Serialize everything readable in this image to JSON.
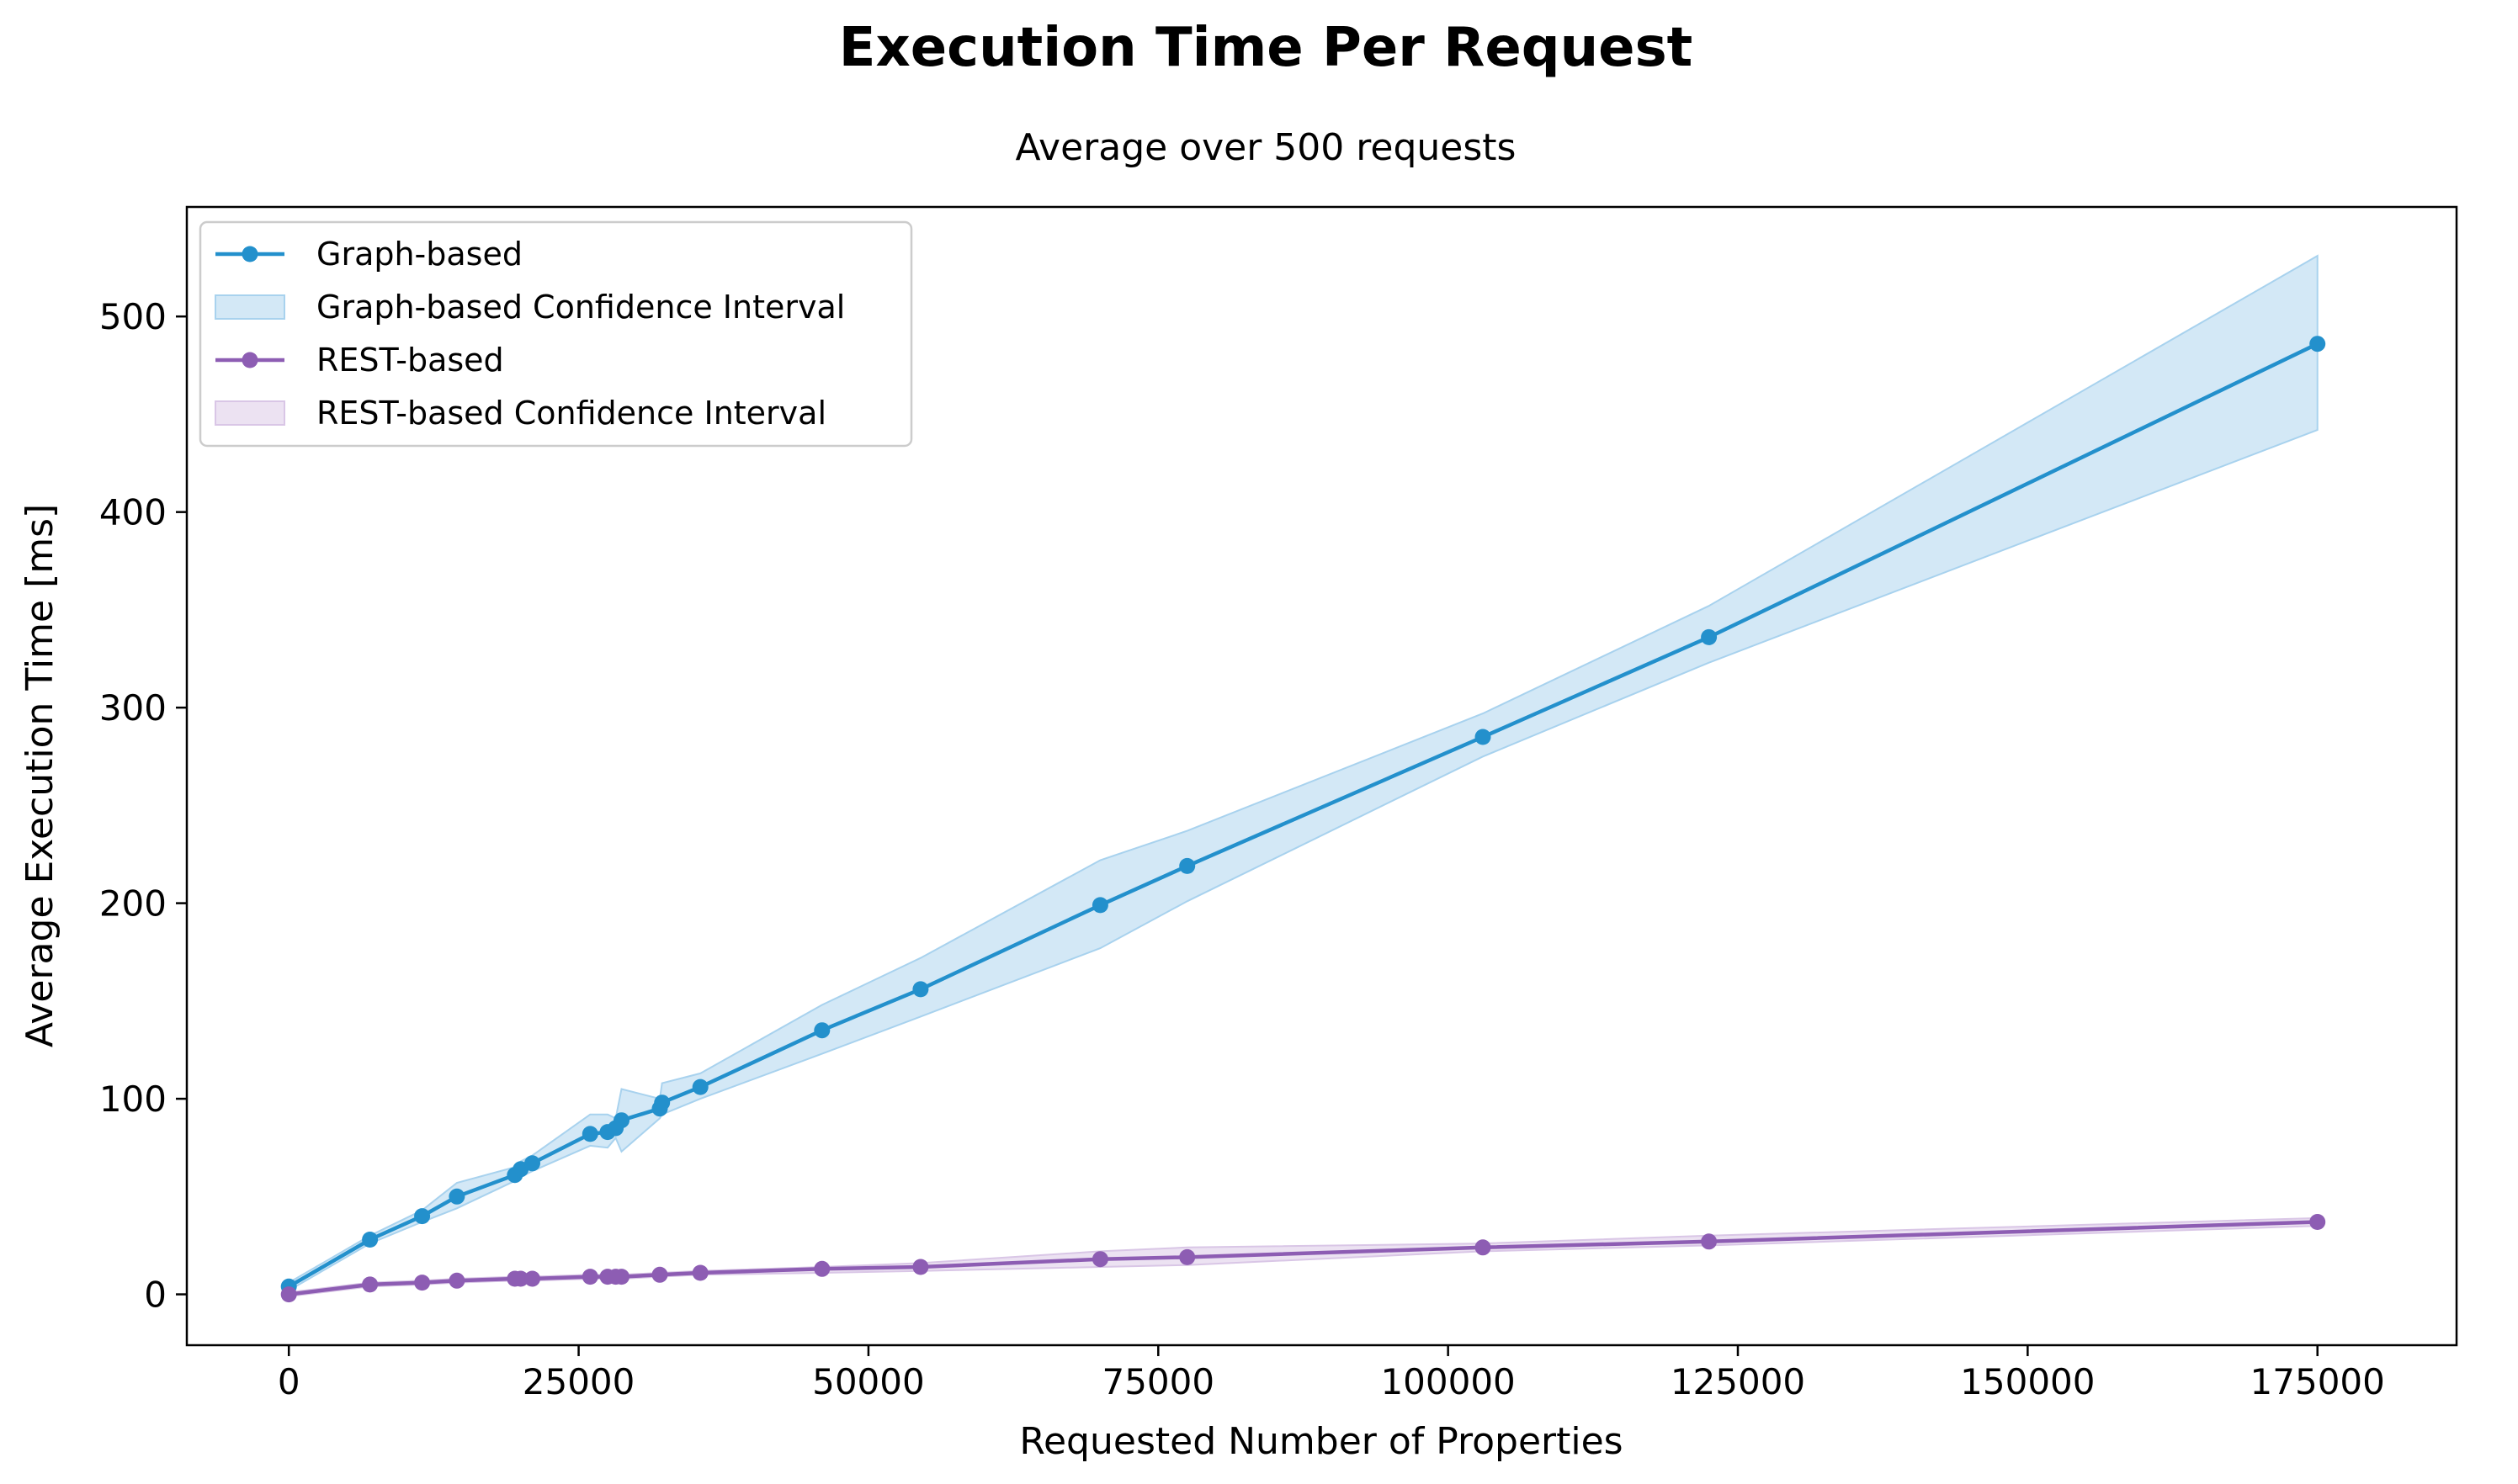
{
  "chart_data": {
    "type": "line",
    "title": "Execution Time Per Request",
    "subtitle": "Average over 500 requests",
    "xlabel": "Requested Number of Properties",
    "ylabel": "Average Execution Time [ms]",
    "xlim": [
      -8800,
      187000
    ],
    "ylim": [
      -26,
      556
    ],
    "xticks": [
      0,
      25000,
      50000,
      75000,
      100000,
      125000,
      150000,
      175000
    ],
    "yticks": [
      0,
      100,
      200,
      300,
      400,
      500
    ],
    "grid": false,
    "legend_position": "top-left",
    "legend": [
      {
        "label": "Graph-based",
        "kind": "line",
        "color": "#2390cc"
      },
      {
        "label": "Graph-based Confidence Interval",
        "kind": "band",
        "color": "#a8d2ee"
      },
      {
        "label": "REST-based",
        "kind": "line",
        "color": "#8d5db3"
      },
      {
        "label": "REST-based Confidence Interval",
        "kind": "band",
        "color": "#d9c6e6"
      }
    ],
    "series": [
      {
        "name": "Graph-based",
        "color": "#2390cc",
        "band_color": "#a8d2ee",
        "x": [
          0,
          7000,
          11500,
          14500,
          19500,
          20000,
          21000,
          26000,
          27500,
          28200,
          28700,
          32000,
          32200,
          35500,
          46000,
          54500,
          70000,
          77500,
          103000,
          122500,
          175000
        ],
        "y": [
          4,
          28,
          40,
          50,
          61,
          64,
          67,
          82,
          83,
          85,
          89,
          95,
          98,
          106,
          135,
          156,
          199,
          219,
          285,
          336,
          486
        ],
        "ci_low": [
          2,
          26,
          37,
          44,
          58,
          60,
          63,
          76,
          75,
          80,
          73,
          90,
          92,
          100,
          123,
          142,
          177,
          201,
          275,
          323,
          442
        ],
        "ci_high": [
          6,
          30,
          43,
          57,
          65,
          68,
          71,
          92,
          92,
          90,
          105,
          100,
          108,
          113,
          148,
          172,
          222,
          237,
          297,
          352,
          531
        ]
      },
      {
        "name": "REST-based",
        "color": "#8d5db3",
        "band_color": "#d9c6e6",
        "x": [
          0,
          7000,
          11500,
          14500,
          19500,
          20000,
          21000,
          26000,
          27500,
          28200,
          28700,
          32000,
          35500,
          46000,
          54500,
          70000,
          77500,
          103000,
          122500,
          175000
        ],
        "y": [
          0,
          5,
          6,
          7,
          8,
          8,
          8,
          9,
          9,
          9,
          9,
          10,
          11,
          13,
          14,
          18,
          19,
          24,
          27,
          37
        ],
        "ci_low": [
          -1,
          4,
          5,
          6,
          7,
          7,
          7,
          8,
          8,
          8,
          8,
          9,
          10,
          11,
          12,
          14,
          15,
          22,
          25,
          35
        ],
        "ci_high": [
          1,
          6,
          7,
          8,
          9,
          9,
          9,
          10,
          10,
          10,
          10,
          11,
          12,
          14,
          16,
          22,
          24,
          26,
          30,
          39
        ]
      }
    ]
  }
}
